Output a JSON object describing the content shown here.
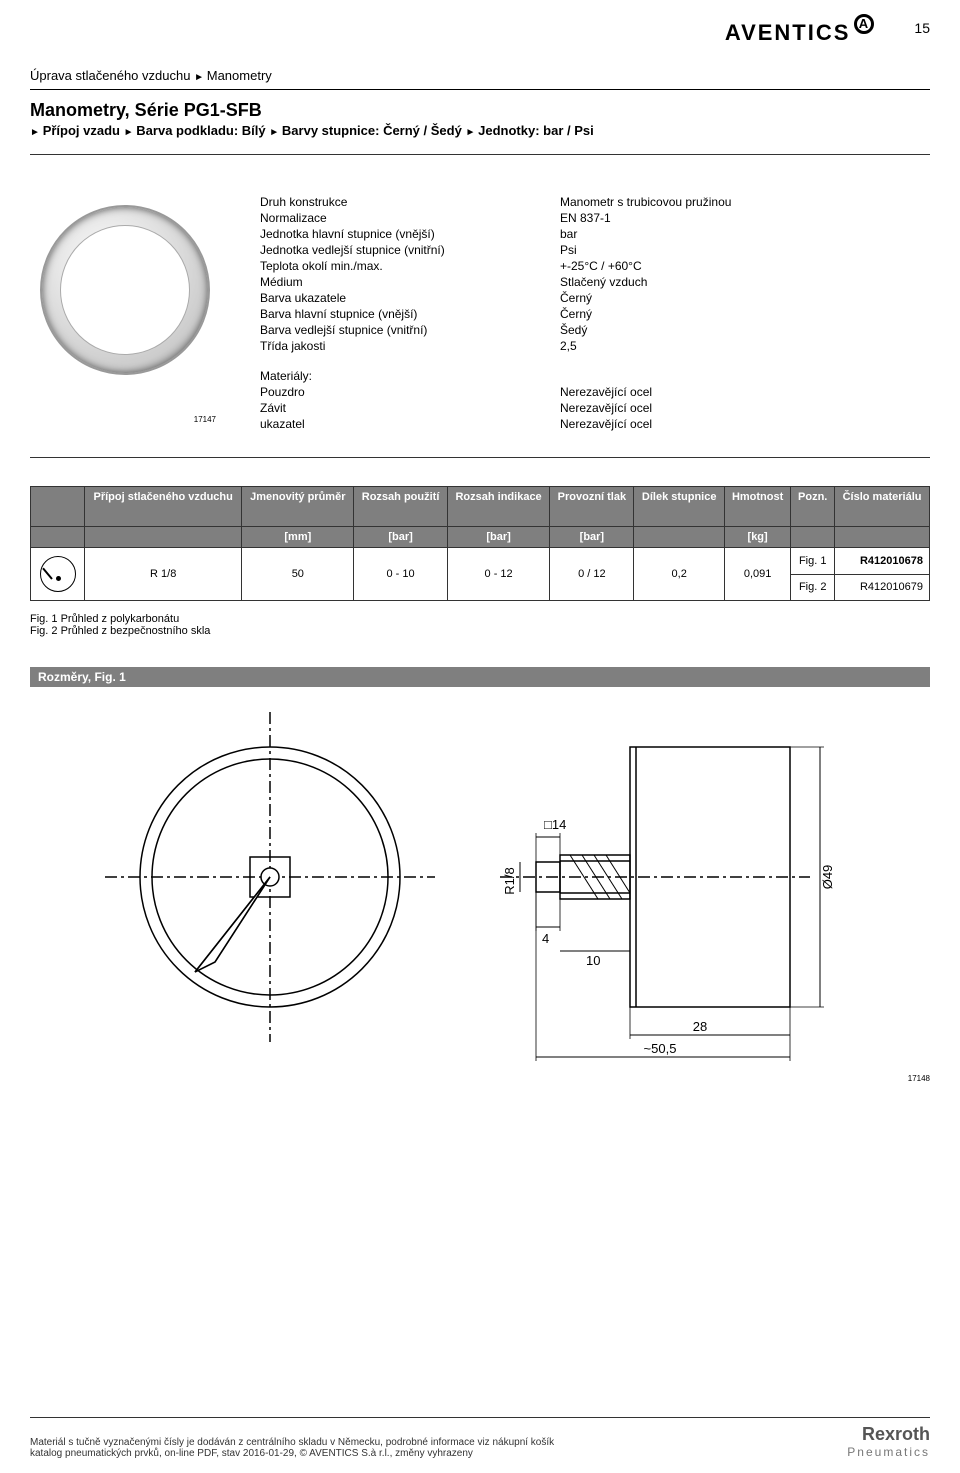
{
  "page_number": "15",
  "logo_text": "AVENTICS",
  "breadcrumb": [
    "Úprava stlačeného vzduchu",
    "Manometry"
  ],
  "series_title": "Manometry, Série PG1-SFB",
  "sub_breadcrumb": [
    "Přípoj vzadu",
    "Barva podkladu: Bílý",
    "Barvy stupnice: Černý / Šedý",
    "Jednotky: bar / Psi"
  ],
  "image_id": "17147",
  "specs_top": [
    {
      "label": "Druh konstrukce",
      "value": "Manometr s trubicovou pružinou"
    },
    {
      "label": "Normalizace",
      "value": "EN 837-1"
    },
    {
      "label": "Jednotka hlavní stupnice (vnější)",
      "value": "bar"
    },
    {
      "label": "Jednotka vedlejší stupnice (vnitřní)",
      "value": "Psi"
    },
    {
      "label": "Teplota okolí min./max.",
      "value": "+-25°C / +60°C"
    },
    {
      "label": "Médium",
      "value": "Stlačený vzduch"
    },
    {
      "label": "Barva ukazatele",
      "value": "Černý"
    },
    {
      "label": "Barva hlavní stupnice (vnější)",
      "value": "Černý"
    },
    {
      "label": "Barva vedlejší stupnice (vnitřní)",
      "value": "Šedý"
    },
    {
      "label": "Třída jakosti",
      "value": "2,5"
    }
  ],
  "materials_heading": "Materiály:",
  "specs_materials": [
    {
      "label": "Pouzdro",
      "value": "Nerezavějící ocel"
    },
    {
      "label": "Závit",
      "value": "Nerezavějící ocel"
    },
    {
      "label": "ukazatel",
      "value": "Nerezavějící ocel"
    }
  ],
  "table": {
    "headers1": [
      "",
      "Přípoj stlačeného vzduchu",
      "Jmenovitý průměr",
      "Rozsah použití",
      "Rozsah indikace",
      "Provozní tlak",
      "Dílek stupnice",
      "Hmotnost",
      "Pozn.",
      "Číslo materiálu"
    ],
    "headers2": [
      "",
      "",
      "[mm]",
      "[bar]",
      "[bar]",
      "[bar]",
      "",
      "[kg]",
      "",
      ""
    ],
    "shared": {
      "connection": "R 1/8",
      "diameter": "50",
      "range_use": "0 - 10",
      "range_ind": "0 - 12",
      "pressure": "0 / 12",
      "division": "0,2",
      "mass": "0,091"
    },
    "rows": [
      {
        "note": "Fig. 1",
        "partno": "R412010678",
        "bold": true
      },
      {
        "note": "Fig. 2",
        "partno": "R412010679",
        "bold": false
      }
    ]
  },
  "fig_notes": [
    "Fig. 1 Průhled z polykarbonátu",
    "Fig. 2 Průhled z bezpečnostního skla"
  ],
  "dimensions_header": "Rozměry, Fig. 1",
  "dim_labels": {
    "sq14": "14",
    "r18": "R1/8",
    "d4": "4",
    "d10": "10",
    "d28": "28",
    "d505": "~50,5",
    "dia49": "Ø49"
  },
  "dim_id": "17148",
  "footer_line1": "Materiál s tučně vyznačenými čísly je dodáván z centrálního skladu v Německu, podrobné informace viz nákupní košík",
  "footer_line2": "katalog pneumatických prvků, on-line PDF, stav 2016-01-29, © AVENTICS S.à r.l., změny vyhrazeny",
  "footer_logo": "Rexroth",
  "footer_logo_sub": "Pneumatics"
}
